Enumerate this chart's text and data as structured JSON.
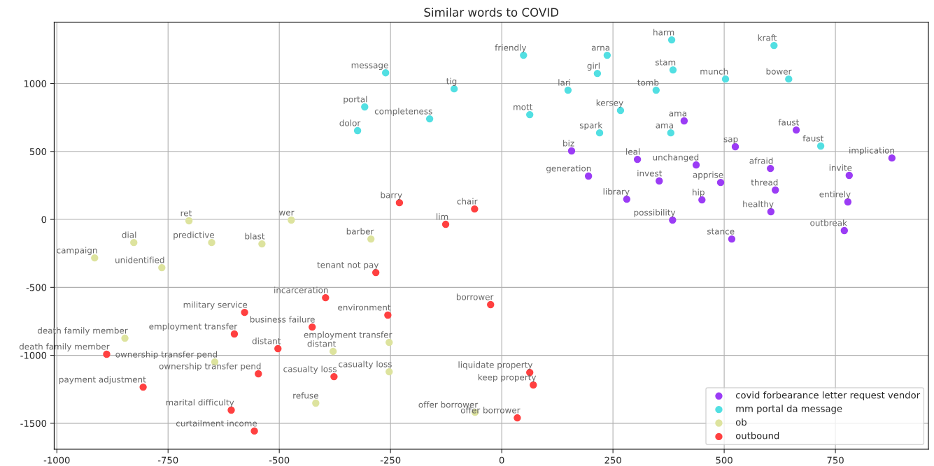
{
  "chart_data": {
    "type": "scatter",
    "title": "Similar words to COVID",
    "xlim": [
      -1006,
      959
    ],
    "ylim": [
      -1691,
      1450
    ],
    "xticks": [
      -1000,
      -750,
      -500,
      -250,
      0,
      250,
      500,
      750
    ],
    "yticks": [
      -1500,
      -1000,
      -500,
      0,
      500,
      1000
    ],
    "grid": true,
    "legend": "bottom right",
    "marker": "circle",
    "series": [
      {
        "name": "covid forbearance letter request vendor",
        "color": "#9b3cf5",
        "x": [
          157,
          410,
          305,
          195,
          437,
          525,
          662,
          877,
          604,
          354,
          492,
          781,
          615,
          281,
          450,
          778,
          605,
          384,
          770,
          517
        ],
        "values": [
          504,
          725,
          442,
          319,
          401,
          535,
          658,
          452,
          375,
          283,
          272,
          324,
          216,
          149,
          144,
          129,
          57,
          -5,
          -82,
          -144
        ]
      },
      {
        "name": "mm portal da message",
        "color": "#52dfe2",
        "x": [
          382,
          612,
          49,
          237,
          215,
          385,
          -261,
          503,
          645,
          -107,
          149,
          347,
          -308,
          63,
          267,
          -162,
          -324,
          220,
          380,
          717
        ],
        "values": [
          1321,
          1280,
          1208,
          1208,
          1074,
          1100,
          1079,
          1033,
          1033,
          961,
          951,
          951,
          828,
          771,
          802,
          740,
          653,
          637,
          637,
          540
        ]
      },
      {
        "name": "ob",
        "color": "#dde39e",
        "x": [
          -703,
          -473,
          -827,
          -652,
          -539,
          -294,
          -915,
          -764,
          -847,
          -253,
          -379,
          -645,
          -253,
          -418,
          -60
        ],
        "values": [
          -10,
          -5,
          -170,
          -170,
          -180,
          -144,
          -283,
          -355,
          -874,
          -905,
          -971,
          -1049,
          -1121,
          -1352,
          -1419
        ]
      },
      {
        "name": "outbound",
        "color": "#ff4040",
        "x": [
          -230,
          -61,
          -126,
          -283,
          -396,
          -25,
          -578,
          -256,
          -426,
          -601,
          -503,
          -888,
          -547,
          -377,
          63,
          -806,
          71,
          -608,
          35,
          -556
        ],
        "values": [
          123,
          77,
          -36,
          -391,
          -576,
          -627,
          -684,
          -704,
          -792,
          -843,
          -951,
          -992,
          -1136,
          -1157,
          -1126,
          -1234,
          -1218,
          -1403,
          -1460,
          -1557
        ]
      }
    ],
    "annotations": [
      {
        "text": "biz",
        "x": 157,
        "y": 504
      },
      {
        "text": "ama",
        "x": 410,
        "y": 725
      },
      {
        "text": "leal",
        "x": 305,
        "y": 442
      },
      {
        "text": "generation",
        "x": 195,
        "y": 319
      },
      {
        "text": "unchanged",
        "x": 437,
        "y": 401
      },
      {
        "text": "sap",
        "x": 525,
        "y": 535
      },
      {
        "text": "faust",
        "x": 662,
        "y": 658
      },
      {
        "text": "implication",
        "x": 877,
        "y": 452
      },
      {
        "text": "afraid",
        "x": 604,
        "y": 375
      },
      {
        "text": "invest",
        "x": 354,
        "y": 283
      },
      {
        "text": "apprise",
        "x": 492,
        "y": 272
      },
      {
        "text": "invite",
        "x": 781,
        "y": 324
      },
      {
        "text": "thread",
        "x": 615,
        "y": 216
      },
      {
        "text": "library",
        "x": 281,
        "y": 149
      },
      {
        "text": "hip",
        "x": 450,
        "y": 144
      },
      {
        "text": "entirely",
        "x": 778,
        "y": 129
      },
      {
        "text": "healthy",
        "x": 605,
        "y": 57
      },
      {
        "text": "possibility",
        "x": 384,
        "y": -5
      },
      {
        "text": "outbreak",
        "x": 770,
        "y": -82
      },
      {
        "text": "stance",
        "x": 517,
        "y": -144
      },
      {
        "text": "harm",
        "x": 382,
        "y": 1321
      },
      {
        "text": "kraft",
        "x": 612,
        "y": 1280
      },
      {
        "text": "friendly",
        "x": 49,
        "y": 1208
      },
      {
        "text": "arna",
        "x": 237,
        "y": 1208
      },
      {
        "text": "girl",
        "x": 215,
        "y": 1074
      },
      {
        "text": "stam",
        "x": 385,
        "y": 1100
      },
      {
        "text": "message",
        "x": -261,
        "y": 1079
      },
      {
        "text": "munch",
        "x": 503,
        "y": 1033
      },
      {
        "text": "bower",
        "x": 645,
        "y": 1033
      },
      {
        "text": "tig",
        "x": -107,
        "y": 961
      },
      {
        "text": "lari",
        "x": 149,
        "y": 951
      },
      {
        "text": "tomb",
        "x": 347,
        "y": 951
      },
      {
        "text": "portal",
        "x": -308,
        "y": 828
      },
      {
        "text": "mott",
        "x": 63,
        "y": 771
      },
      {
        "text": "kersey",
        "x": 267,
        "y": 802
      },
      {
        "text": "completeness",
        "x": -162,
        "y": 740
      },
      {
        "text": "dolor",
        "x": -324,
        "y": 653
      },
      {
        "text": "spark",
        "x": 220,
        "y": 637
      },
      {
        "text": "ama",
        "x": 380,
        "y": 637
      },
      {
        "text": "faust",
        "x": 717,
        "y": 540
      },
      {
        "text": "ret",
        "x": -703,
        "y": -10
      },
      {
        "text": "wer",
        "x": -473,
        "y": -5
      },
      {
        "text": "dial",
        "x": -827,
        "y": -170
      },
      {
        "text": "predictive",
        "x": -652,
        "y": -170
      },
      {
        "text": "blast",
        "x": -539,
        "y": -180
      },
      {
        "text": "barber",
        "x": -294,
        "y": -144
      },
      {
        "text": "campaign",
        "x": -915,
        "y": -283
      },
      {
        "text": "unidentified",
        "x": -764,
        "y": -355
      },
      {
        "text": "death family member",
        "x": -847,
        "y": -874
      },
      {
        "text": "employment transfer",
        "x": -253,
        "y": -905
      },
      {
        "text": "distant",
        "x": -379,
        "y": -971
      },
      {
        "text": "ownership transfer pend",
        "x": -645,
        "y": -1049
      },
      {
        "text": "casualty loss",
        "x": -253,
        "y": -1121
      },
      {
        "text": "refuse",
        "x": -418,
        "y": -1352
      },
      {
        "text": "offer borrower",
        "x": -60,
        "y": -1419
      },
      {
        "text": "barry",
        "x": -230,
        "y": 123
      },
      {
        "text": "chair",
        "x": -61,
        "y": 77
      },
      {
        "text": "lim",
        "x": -126,
        "y": -36
      },
      {
        "text": "tenant not pay",
        "x": -283,
        "y": -391
      },
      {
        "text": "incarceration",
        "x": -396,
        "y": -576
      },
      {
        "text": "borrower",
        "x": -25,
        "y": -627
      },
      {
        "text": "military service",
        "x": -578,
        "y": -684
      },
      {
        "text": "environment",
        "x": -256,
        "y": -704
      },
      {
        "text": "business failure",
        "x": -426,
        "y": -792
      },
      {
        "text": "employment transfer",
        "x": -601,
        "y": -843
      },
      {
        "text": "distant",
        "x": -503,
        "y": -951
      },
      {
        "text": "death family member",
        "x": -888,
        "y": -992
      },
      {
        "text": "ownership transfer pend",
        "x": -547,
        "y": -1136
      },
      {
        "text": "casualty loss",
        "x": -377,
        "y": -1157
      },
      {
        "text": "liquidate property",
        "x": 63,
        "y": -1126
      },
      {
        "text": "payment adjustment",
        "x": -806,
        "y": -1234
      },
      {
        "text": "keep property",
        "x": 71,
        "y": -1218
      },
      {
        "text": "marital difficulty",
        "x": -608,
        "y": -1403
      },
      {
        "text": "offer borrower",
        "x": 35,
        "y": -1460
      },
      {
        "text": "curtailment income",
        "x": -556,
        "y": -1557
      }
    ]
  }
}
